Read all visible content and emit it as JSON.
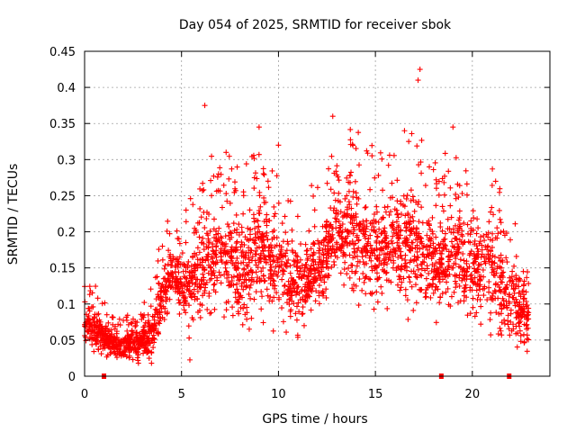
{
  "chart_data": {
    "type": "scatter",
    "title": "Day 054 of 2025, SRMTID for receiver sbok",
    "xlabel": "GPS time / hours",
    "ylabel": "SRMTID / TECUs",
    "xlim": [
      0,
      24
    ],
    "ylim": [
      0,
      0.45
    ],
    "xticks": [
      0,
      5,
      10,
      15,
      20
    ],
    "xtick_labels": [
      "0",
      "5",
      "10",
      "15",
      "20"
    ],
    "yticks": [
      0,
      0.05,
      0.1,
      0.15,
      0.2,
      0.25,
      0.3,
      0.35,
      0.4,
      0.45
    ],
    "ytick_labels": [
      "0",
      "0.05",
      "0.1",
      "0.15",
      "0.2",
      "0.25",
      "0.3",
      "0.35",
      "0.4",
      "0.45"
    ],
    "grid": true,
    "marker": "+",
    "color": "#ff0000",
    "series": [
      {
        "name": "SRMTID",
        "envelope": [
          {
            "t": 0.0,
            "center": 0.07,
            "spread": 0.025
          },
          {
            "t": 0.5,
            "center": 0.065,
            "spread": 0.025
          },
          {
            "t": 1.0,
            "center": 0.055,
            "spread": 0.02
          },
          {
            "t": 1.5,
            "center": 0.045,
            "spread": 0.015
          },
          {
            "t": 2.0,
            "center": 0.04,
            "spread": 0.015
          },
          {
            "t": 2.5,
            "center": 0.045,
            "spread": 0.02
          },
          {
            "t": 3.0,
            "center": 0.05,
            "spread": 0.02
          },
          {
            "t": 3.5,
            "center": 0.06,
            "spread": 0.03
          },
          {
            "t": 4.0,
            "center": 0.11,
            "spread": 0.04
          },
          {
            "t": 4.5,
            "center": 0.15,
            "spread": 0.03
          },
          {
            "t": 5.0,
            "center": 0.13,
            "spread": 0.04
          },
          {
            "t": 5.5,
            "center": 0.13,
            "spread": 0.05
          },
          {
            "t": 6.0,
            "center": 0.15,
            "spread": 0.06
          },
          {
            "t": 7.0,
            "center": 0.17,
            "spread": 0.06
          },
          {
            "t": 8.0,
            "center": 0.14,
            "spread": 0.06
          },
          {
            "t": 9.0,
            "center": 0.17,
            "spread": 0.06
          },
          {
            "t": 10.0,
            "center": 0.16,
            "spread": 0.06
          },
          {
            "t": 11.0,
            "center": 0.12,
            "spread": 0.05
          },
          {
            "t": 12.0,
            "center": 0.15,
            "spread": 0.05
          },
          {
            "t": 13.0,
            "center": 0.2,
            "spread": 0.06
          },
          {
            "t": 14.0,
            "center": 0.19,
            "spread": 0.06
          },
          {
            "t": 15.0,
            "center": 0.18,
            "spread": 0.06
          },
          {
            "t": 16.0,
            "center": 0.19,
            "spread": 0.06
          },
          {
            "t": 17.0,
            "center": 0.18,
            "spread": 0.07
          },
          {
            "t": 18.0,
            "center": 0.15,
            "spread": 0.06
          },
          {
            "t": 19.0,
            "center": 0.17,
            "spread": 0.06
          },
          {
            "t": 20.0,
            "center": 0.15,
            "spread": 0.05
          },
          {
            "t": 21.0,
            "center": 0.15,
            "spread": 0.06
          },
          {
            "t": 22.0,
            "center": 0.11,
            "spread": 0.05
          },
          {
            "t": 22.9,
            "center": 0.08,
            "spread": 0.03
          }
        ],
        "time_range": [
          0.0,
          22.9
        ],
        "approx_point_count": 2800,
        "highlight_points": [
          {
            "x": 6.2,
            "y": 0.375
          },
          {
            "x": 17.3,
            "y": 0.425
          },
          {
            "x": 17.2,
            "y": 0.41
          },
          {
            "x": 12.8,
            "y": 0.36
          },
          {
            "x": 9.0,
            "y": 0.345
          },
          {
            "x": 19.0,
            "y": 0.345
          },
          {
            "x": 16.5,
            "y": 0.34
          },
          {
            "x": 10.0,
            "y": 0.32
          },
          {
            "x": 7.3,
            "y": 0.31
          },
          {
            "x": 21.2,
            "y": 0.27
          }
        ]
      }
    ],
    "slip_markers_x": [
      1.0,
      18.4,
      21.9
    ]
  }
}
